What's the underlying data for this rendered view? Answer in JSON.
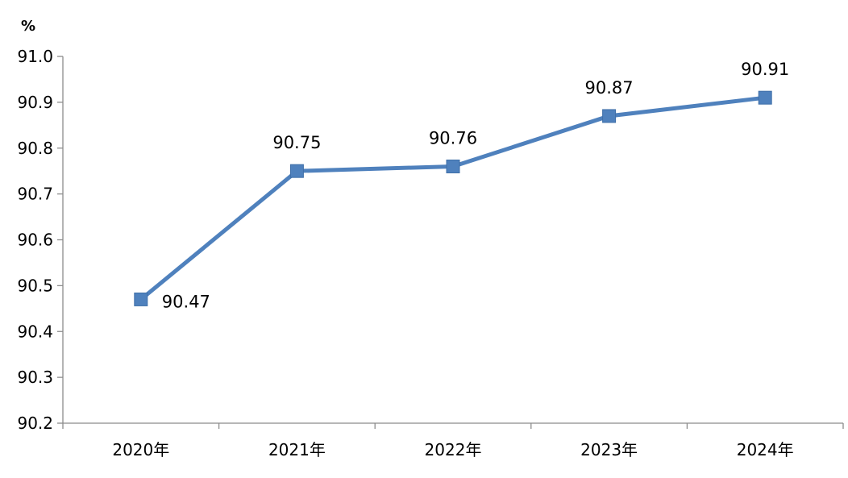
{
  "chart_data": {
    "type": "line",
    "title": "",
    "xlabel": "",
    "ylabel": "",
    "y_unit": "%",
    "categories": [
      "2020年",
      "2021年",
      "2022年",
      "2023年",
      "2024年"
    ],
    "series": [
      {
        "values": [
          90.47,
          90.75,
          90.76,
          90.87,
          90.91
        ],
        "data_labels": [
          "90.47",
          "90.75",
          "90.76",
          "90.87",
          "90.91"
        ],
        "color": "#4f81bd",
        "marker": "square"
      }
    ],
    "ylim": [
      90.2,
      91.0
    ],
    "yticks": [
      90.2,
      90.3,
      90.4,
      90.5,
      90.6,
      90.7,
      90.8,
      90.9,
      91.0
    ],
    "ytick_labels": [
      "90.2",
      "90.3",
      "90.4",
      "90.5",
      "90.6",
      "90.7",
      "90.8",
      "90.9",
      "91.0"
    ],
    "grid": false,
    "legend": "none"
  }
}
